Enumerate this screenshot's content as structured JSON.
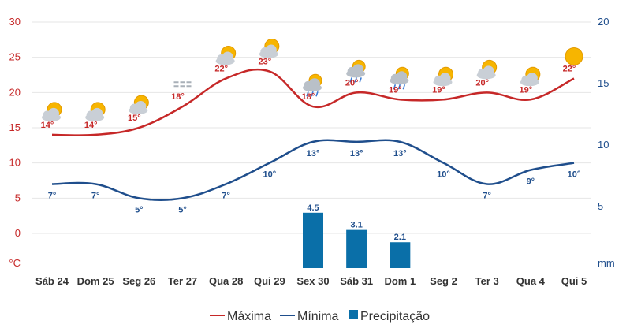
{
  "chart_data": {
    "type": "line",
    "categories": [
      "Sáb 24",
      "Dom 25",
      "Seg 26",
      "Ter 27",
      "Qua 28",
      "Qui 29",
      "Sex 30",
      "Sáb 31",
      "Dom 1",
      "Seg 2",
      "Ter 3",
      "Qua 4",
      "Qui 5"
    ],
    "series": [
      {
        "name": "Máxima",
        "type": "line",
        "axis": "left",
        "color": "#c62828",
        "values": [
          14,
          14,
          15,
          18,
          22,
          23,
          18,
          20,
          19,
          19,
          20,
          19,
          22
        ],
        "labels": [
          "14°",
          "14°",
          "15°",
          "18°",
          "22°",
          "23°",
          "18°",
          "20°",
          "19°",
          "19°",
          "20°",
          "19°",
          "22°"
        ]
      },
      {
        "name": "Mínima",
        "type": "line",
        "axis": "left",
        "color": "#1f4e8c",
        "values": [
          7,
          7,
          5,
          5,
          7,
          10,
          13,
          13,
          13,
          10,
          7,
          9,
          10
        ],
        "labels": [
          "7°",
          "7°",
          "5°",
          "5°",
          "7°",
          "10°",
          "13°",
          "13°",
          "13°",
          "10°",
          "7°",
          "9°",
          "10°"
        ]
      },
      {
        "name": "Precipitação",
        "type": "bar",
        "axis": "right",
        "color": "#0a6fa8",
        "values": [
          null,
          null,
          null,
          null,
          null,
          null,
          4.5,
          3.1,
          2.1,
          null,
          null,
          null,
          null
        ],
        "labels": [
          "",
          "",
          "",
          "",
          "",
          "",
          "4.5",
          "3.1",
          "2.1",
          "",
          "",
          "",
          ""
        ]
      }
    ],
    "yaxis_left": {
      "ticks": [
        "30",
        "25",
        "20",
        "15",
        "10",
        "5",
        "0"
      ],
      "unit": "°C",
      "range": [
        -3.5,
        30
      ]
    },
    "yaxis_right": {
      "ticks": [
        "20",
        "15",
        "10",
        "5"
      ],
      "unit": "mm",
      "range": [
        0,
        21
      ]
    },
    "icons": [
      "partly-sunny-icon",
      "partly-sunny-icon",
      "partly-sunny-icon",
      "fog-icon",
      "partly-sunny-icon",
      "partly-sunny-icon",
      "sun-rain-icon",
      "sun-rain-icon",
      "sun-rain-icon",
      "partly-sunny-icon",
      "partly-sunny-icon",
      "partly-sunny-icon",
      "sun-icon"
    ],
    "grid": true,
    "legend_position": "bottom"
  },
  "legend": {
    "max": "Máxima",
    "min": "Mínima",
    "precip": "Precipitação"
  }
}
